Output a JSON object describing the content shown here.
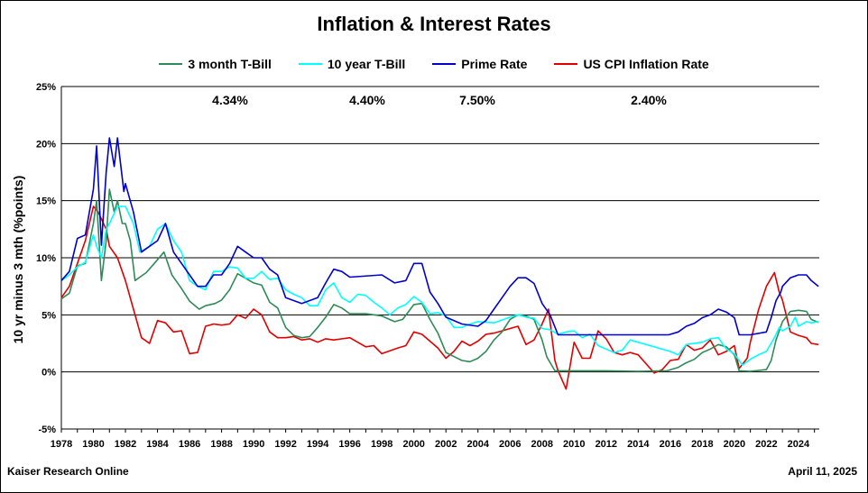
{
  "chart_data": {
    "type": "line",
    "title": "Inflation & Interest Rates",
    "ylabel": "10 yr minus 3 mth (%points)",
    "xlabel": "",
    "ylim": [
      -5,
      25
    ],
    "xlim": [
      1978,
      2025.3
    ],
    "yticks": [
      -5,
      0,
      5,
      10,
      15,
      20,
      25
    ],
    "ytick_labels": [
      "-5%",
      "0%",
      "5%",
      "10%",
      "15%",
      "20%",
      "25%"
    ],
    "xticks": [
      1978,
      1980,
      1982,
      1984,
      1986,
      1988,
      1990,
      1992,
      1994,
      1996,
      1998,
      2000,
      2002,
      2004,
      2006,
      2008,
      2010,
      2012,
      2014,
      2016,
      2018,
      2020,
      2022,
      2024
    ],
    "grid": "horizontal",
    "legend": "top",
    "current_values": [
      "4.34%",
      "4.40%",
      "7.50%",
      "2.40%"
    ],
    "series": [
      {
        "name": "3 month T-Bill",
        "color": "#2e8b57",
        "x": [
          1978,
          1978.5,
          1979,
          1979.5,
          1980,
          1980.2,
          1980.5,
          1980.8,
          1981,
          1981.3,
          1981.5,
          1981.8,
          1982,
          1982.3,
          1982.6,
          1982.9,
          1983.3,
          1983.8,
          1984.4,
          1984.9,
          1985.5,
          1986,
          1986.6,
          1987,
          1987.6,
          1988,
          1988.5,
          1989,
          1989.5,
          1990,
          1990.5,
          1991,
          1991.5,
          1992,
          1992.5,
          1993,
          1993.5,
          1994,
          1994.5,
          1995,
          1995.5,
          1996,
          1997,
          1998,
          1998.8,
          1999.3,
          2000,
          2000.5,
          2001,
          2001.5,
          2002,
          2003,
          2003.5,
          2004,
          2004.5,
          2005,
          2005.5,
          2006,
          2006.5,
          2007,
          2007.5,
          2008,
          2008.3,
          2008.8,
          2009,
          2010,
          2012,
          2014,
          2015.8,
          2016.5,
          2017,
          2017.5,
          2018,
          2018.5,
          2019,
          2019.5,
          2020,
          2020.3,
          2021,
          2022,
          2022.3,
          2022.6,
          2023,
          2023.5,
          2024,
          2024.5,
          2024.8,
          2025.25
        ],
        "y": [
          6.4,
          6.9,
          9.3,
          9.5,
          13,
          15,
          8,
          11.5,
          16,
          14,
          15,
          13,
          13,
          11.5,
          8,
          8.3,
          8.7,
          9.5,
          10.5,
          8.5,
          7.3,
          6.2,
          5.5,
          5.8,
          6.0,
          6.3,
          7.2,
          8.6,
          8.2,
          7.8,
          7.6,
          6.1,
          5.6,
          3.9,
          3.2,
          3.0,
          3.1,
          3.9,
          4.8,
          5.9,
          5.6,
          5.1,
          5.1,
          4.9,
          4.4,
          4.6,
          5.9,
          6.0,
          4.6,
          3.4,
          1.7,
          1.0,
          0.9,
          1.2,
          1.8,
          2.8,
          3.5,
          4.6,
          5.0,
          4.9,
          4.6,
          2.8,
          1.3,
          0.1,
          0.1,
          0.1,
          0.1,
          0.05,
          0.1,
          0.4,
          0.8,
          1.1,
          1.7,
          2.0,
          2.4,
          2.2,
          1.5,
          0.1,
          0.05,
          0.2,
          1.0,
          2.8,
          4.4,
          5.3,
          5.4,
          5.3,
          4.6,
          4.34
        ]
      },
      {
        "name": "10 year T-Bill",
        "color": "#00ffff",
        "x": [
          1978,
          1978.5,
          1979,
          1979.5,
          1980,
          1980.2,
          1980.5,
          1980.8,
          1981,
          1981.5,
          1982,
          1982.5,
          1982.9,
          1983.5,
          1984,
          1984.5,
          1985,
          1985.5,
          1986,
          1986.5,
          1987,
          1987.5,
          1988,
          1988.5,
          1989,
          1989.5,
          1990,
          1990.5,
          1991,
          1991.5,
          1992,
          1992.5,
          1993,
          1993.5,
          1994,
          1994.5,
          1995,
          1995.5,
          1996,
          1996.5,
          1997,
          1997.5,
          1998,
          1998.5,
          1999,
          1999.5,
          2000,
          2000.5,
          2001,
          2001.5,
          2002,
          2002.5,
          2003,
          2003.5,
          2004,
          2005,
          2006,
          2006.5,
          2007,
          2007.5,
          2008,
          2008.5,
          2009,
          2009.5,
          2010,
          2010.5,
          2011,
          2011.5,
          2012,
          2012.5,
          2013,
          2013.5,
          2014,
          2015,
          2016,
          2016.5,
          2017,
          2018,
          2018.5,
          2019,
          2019.5,
          2020,
          2020.5,
          2021,
          2021.5,
          2022,
          2022.5,
          2022.8,
          2023,
          2023.5,
          2023.8,
          2024,
          2024.5,
          2024.8,
          2025.25
        ],
        "y": [
          8,
          8.5,
          9.2,
          9.6,
          12,
          11,
          10,
          12.5,
          13,
          14.5,
          14.5,
          13,
          10.5,
          11,
          12.5,
          13,
          11.5,
          10.5,
          8,
          7.5,
          7.2,
          8.8,
          8.8,
          9.2,
          9.1,
          8.2,
          8.2,
          8.8,
          8.1,
          8.2,
          7.2,
          6.8,
          6.5,
          5.8,
          5.8,
          7.2,
          7.8,
          6.5,
          6.1,
          6.8,
          6.7,
          6.1,
          5.6,
          5.0,
          5.6,
          5.9,
          6.6,
          6.1,
          5.1,
          5.2,
          4.9,
          3.9,
          3.9,
          4.2,
          4.4,
          4.3,
          4.8,
          5.0,
          4.8,
          4.7,
          3.8,
          3.7,
          3.3,
          3.5,
          3.6,
          3.0,
          3.3,
          2.3,
          2.0,
          1.7,
          1.9,
          2.8,
          2.6,
          2.2,
          1.8,
          1.5,
          2.4,
          2.6,
          2.9,
          3.0,
          2.0,
          1.6,
          0.6,
          1.1,
          1.5,
          1.8,
          3.0,
          3.9,
          3.6,
          4.0,
          4.8,
          4.0,
          4.4,
          4.3,
          4.4
        ]
      },
      {
        "name": "Prime Rate",
        "color": "#0000cd",
        "x": [
          1978,
          1978.5,
          1979,
          1979.5,
          1980,
          1980.2,
          1980.5,
          1980.8,
          1981,
          1981.3,
          1981.5,
          1981.9,
          1982,
          1982.5,
          1983,
          1983.5,
          1984,
          1984.5,
          1985,
          1985.5,
          1986,
          1986.5,
          1987,
          1987.5,
          1988,
          1988.5,
          1989,
          1989.5,
          1990,
          1990.5,
          1991,
          1991.5,
          1992,
          1993,
          1994,
          1994.5,
          1995,
          1995.5,
          1996,
          1998,
          1998.8,
          1999.5,
          2000,
          2000.5,
          2001,
          2001.5,
          2002,
          2003,
          2004,
          2004.5,
          2005,
          2005.5,
          2006,
          2006.5,
          2007,
          2007.5,
          2008,
          2008.5,
          2009,
          2010,
          2012,
          2014,
          2015.9,
          2016.5,
          2017,
          2017.5,
          2018,
          2018.5,
          2019,
          2019.5,
          2020,
          2020.3,
          2021,
          2022,
          2022.3,
          2022.6,
          2022.9,
          2023,
          2023.5,
          2024,
          2024.5,
          2024.8,
          2025.25
        ],
        "y": [
          8,
          8.8,
          11.7,
          12.0,
          16,
          19.8,
          11.1,
          17.5,
          20.5,
          18.0,
          20.5,
          15.8,
          16.5,
          14.0,
          10.5,
          11.0,
          11.5,
          13.0,
          10.5,
          9.5,
          8.5,
          7.5,
          7.5,
          8.5,
          8.5,
          9.5,
          11.0,
          10.5,
          10.0,
          10.0,
          9.0,
          8.5,
          6.5,
          6.0,
          6.5,
          7.8,
          9.0,
          8.8,
          8.3,
          8.5,
          7.8,
          8.0,
          9.5,
          9.5,
          7.0,
          6.0,
          4.8,
          4.2,
          4.0,
          4.5,
          5.5,
          6.5,
          7.5,
          8.25,
          8.25,
          7.75,
          6.0,
          5.0,
          3.25,
          3.25,
          3.25,
          3.25,
          3.25,
          3.5,
          4.0,
          4.25,
          4.75,
          5.0,
          5.5,
          5.25,
          4.75,
          3.25,
          3.25,
          3.5,
          4.75,
          6.25,
          7.0,
          7.5,
          8.25,
          8.5,
          8.5,
          8.0,
          7.5
        ]
      },
      {
        "name": "US CPI Inflation Rate",
        "color": "#e00000",
        "x": [
          1978,
          1978.5,
          1979,
          1979.5,
          1980,
          1980.3,
          1980.8,
          1981,
          1981.5,
          1982,
          1982.5,
          1983,
          1983.5,
          1984,
          1984.5,
          1985,
          1985.5,
          1986,
          1986.5,
          1987,
          1987.5,
          1988,
          1988.5,
          1989,
          1989.5,
          1990,
          1990.5,
          1991,
          1991.5,
          1992,
          1992.5,
          1993,
          1993.5,
          1994,
          1994.5,
          1995,
          1996,
          1997,
          1997.5,
          1998,
          1999,
          1999.5,
          2000,
          2000.5,
          2001,
          2001.5,
          2002,
          2002.5,
          2003,
          2003.5,
          2004,
          2004.5,
          2005,
          2005.5,
          2006,
          2006.5,
          2007,
          2007.5,
          2008,
          2008.4,
          2008.8,
          2009,
          2009.5,
          2010,
          2010.5,
          2011,
          2011.5,
          2012,
          2012.5,
          2013,
          2013.5,
          2014,
          2015,
          2015.5,
          2016,
          2016.5,
          2017,
          2017.5,
          2018,
          2018.5,
          2019,
          2019.5,
          2020,
          2020.3,
          2020.8,
          2021,
          2021.5,
          2022,
          2022.5,
          2022.8,
          2023,
          2023.5,
          2024,
          2024.5,
          2024.8,
          2025.25
        ],
        "y": [
          6.5,
          7.5,
          9.5,
          11.5,
          14.5,
          14.0,
          12.5,
          11.0,
          10.0,
          8.0,
          5.5,
          3.0,
          2.5,
          4.5,
          4.3,
          3.5,
          3.6,
          1.6,
          1.7,
          4.0,
          4.2,
          4.1,
          4.2,
          5.0,
          4.7,
          5.5,
          5.0,
          3.5,
          3.0,
          3.0,
          3.1,
          2.8,
          2.9,
          2.6,
          2.9,
          2.8,
          3.0,
          2.2,
          2.3,
          1.6,
          2.1,
          2.3,
          3.5,
          3.3,
          2.7,
          2.1,
          1.2,
          1.8,
          2.7,
          2.3,
          2.7,
          3.3,
          3.4,
          3.6,
          3.8,
          4.0,
          2.4,
          2.8,
          4.2,
          5.5,
          1.0,
          0.1,
          -1.5,
          2.6,
          1.2,
          1.2,
          3.6,
          2.9,
          1.7,
          1.5,
          1.7,
          1.5,
          -0.1,
          0.2,
          1.0,
          1.1,
          2.4,
          1.9,
          2.1,
          2.8,
          1.5,
          1.8,
          2.3,
          0.3,
          1.2,
          2.6,
          5.4,
          7.5,
          8.7,
          7.0,
          6.3,
          3.5,
          3.2,
          3.0,
          2.5,
          2.4
        ]
      }
    ]
  },
  "labels": {
    "footer_left": "Kaiser Research Online",
    "footer_right": "April 11, 2025"
  }
}
